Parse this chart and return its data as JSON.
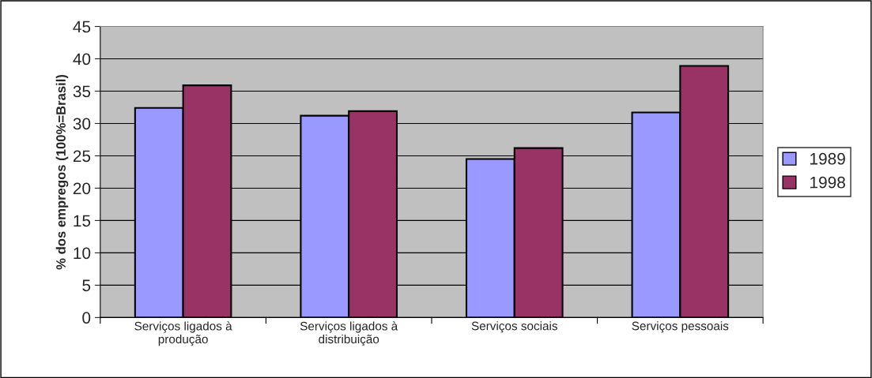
{
  "chart_data": {
    "type": "bar",
    "ylabel": "% dos empregos (100%=Brasil)",
    "categories": [
      "Serviços ligados à\nprodução",
      "Serviços ligados à\ndistribuição",
      "Serviços sociais",
      "Serviços pessoais"
    ],
    "series": [
      {
        "name": "1989",
        "color": "#9999ff",
        "values": [
          32.4,
          31.2,
          24.5,
          31.7
        ]
      },
      {
        "name": "1998",
        "color": "#993366",
        "values": [
          35.9,
          31.9,
          26.2,
          38.9
        ]
      }
    ],
    "ylim": [
      0,
      45
    ],
    "yticks": [
      0,
      5,
      10,
      15,
      20,
      25,
      30,
      35,
      40,
      45
    ],
    "grid": "y",
    "legend": "right"
  }
}
